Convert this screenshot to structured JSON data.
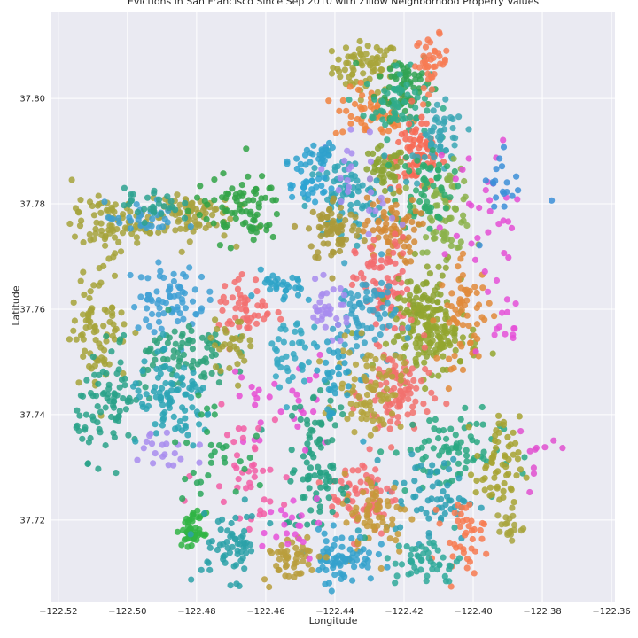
{
  "chart_data": {
    "type": "scatter",
    "title": "Evictions in San Francisco Since Sep 2010 with Zillow Neighborhood Property Values",
    "xlabel": "Longitude",
    "ylabel": "Latitude",
    "xlim": [
      -122.522,
      -122.359
    ],
    "ylim": [
      37.7045,
      37.8165
    ],
    "x_ticks": [
      -122.52,
      -122.5,
      -122.48,
      -122.46,
      -122.44,
      -122.42,
      -122.4,
      -122.38,
      -122.36
    ],
    "x_tick_labels": [
      "−122.52",
      "−122.50",
      "−122.48",
      "−122.46",
      "−122.44",
      "−122.42",
      "−122.40",
      "−122.38",
      "−122.36"
    ],
    "y_ticks": [
      37.72,
      37.74,
      37.76,
      37.78,
      37.8
    ],
    "y_tick_labels": [
      "37.72",
      "37.74",
      "37.76",
      "37.78",
      "37.80"
    ],
    "grid": true,
    "legend": "none",
    "point_alpha": 0.85,
    "background": "#eaeaf2",
    "clusters": [
      {
        "color": "#a8a53a",
        "center": [
          -122.431,
          37.806
        ],
        "spread": [
          0.006,
          0.003
        ],
        "n": 70
      },
      {
        "color": "#f0823e",
        "center": [
          -122.429,
          37.797
        ],
        "spread": [
          0.007,
          0.003
        ],
        "n": 60
      },
      {
        "color": "#31a354",
        "center": [
          -122.42,
          37.803
        ],
        "spread": [
          0.005,
          0.004
        ],
        "n": 60
      },
      {
        "color": "#2fab8b",
        "center": [
          -122.422,
          37.799
        ],
        "spread": [
          0.006,
          0.004
        ],
        "n": 60
      },
      {
        "color": "#f77b54",
        "center": [
          -122.412,
          37.807
        ],
        "spread": [
          0.003,
          0.003
        ],
        "n": 40
      },
      {
        "color": "#f76a55",
        "center": [
          -122.416,
          37.789
        ],
        "spread": [
          0.005,
          0.004
        ],
        "n": 80
      },
      {
        "color": "#8ca332",
        "center": [
          -122.426,
          37.786
        ],
        "spread": [
          0.004,
          0.003
        ],
        "n": 45
      },
      {
        "color": "#3ba7b5",
        "center": [
          -122.409,
          37.792
        ],
        "spread": [
          0.004,
          0.004
        ],
        "n": 50
      },
      {
        "color": "#8bb24a",
        "center": [
          -122.408,
          37.779
        ],
        "spread": [
          0.005,
          0.005
        ],
        "n": 70
      },
      {
        "color": "#30a5b5",
        "center": [
          -122.437,
          37.781
        ],
        "spread": [
          0.007,
          0.005
        ],
        "n": 80
      },
      {
        "color": "#aa9a3a",
        "center": [
          -122.44,
          37.775
        ],
        "spread": [
          0.005,
          0.004
        ],
        "n": 70
      },
      {
        "color": "#2fab6e",
        "center": [
          -122.414,
          37.783
        ],
        "spread": [
          0.005,
          0.005
        ],
        "n": 60
      },
      {
        "color": "#d38a35",
        "center": [
          -122.424,
          37.775
        ],
        "spread": [
          0.005,
          0.004
        ],
        "n": 70
      },
      {
        "color": "#f36b6e",
        "center": [
          -122.426,
          37.764
        ],
        "spread": [
          0.005,
          0.006
        ],
        "n": 80
      },
      {
        "color": "#8da331",
        "center": [
          -122.414,
          37.76
        ],
        "spread": [
          0.005,
          0.006
        ],
        "n": 90
      },
      {
        "color": "#93a62f",
        "center": [
          -122.411,
          37.755
        ],
        "spread": [
          0.008,
          0.004
        ],
        "n": 110
      },
      {
        "color": "#e08a3a",
        "center": [
          -122.402,
          37.759
        ],
        "spread": [
          0.005,
          0.006
        ],
        "n": 60
      },
      {
        "color": "#3ba3c5",
        "center": [
          -122.432,
          37.758
        ],
        "spread": [
          0.006,
          0.006
        ],
        "n": 80
      },
      {
        "color": "#a88cef",
        "center": [
          -122.442,
          37.76
        ],
        "spread": [
          0.004,
          0.003
        ],
        "n": 35
      },
      {
        "color": "#f2716d",
        "center": [
          -122.422,
          37.744
        ],
        "spread": [
          0.006,
          0.006
        ],
        "n": 100
      },
      {
        "color": "#b4a33c",
        "center": [
          -122.43,
          37.745
        ],
        "spread": [
          0.006,
          0.005
        ],
        "n": 80
      },
      {
        "color": "#2aa882",
        "center": [
          -122.408,
          37.733
        ],
        "spread": [
          0.01,
          0.005
        ],
        "n": 80
      },
      {
        "color": "#a7a332",
        "center": [
          -122.393,
          37.73
        ],
        "spread": [
          0.004,
          0.006
        ],
        "n": 60
      },
      {
        "color": "#2ea0b5",
        "center": [
          -122.412,
          37.724
        ],
        "spread": [
          0.008,
          0.005
        ],
        "n": 60
      },
      {
        "color": "#f56f73",
        "center": [
          -122.432,
          37.725
        ],
        "spread": [
          0.006,
          0.005
        ],
        "n": 70
      },
      {
        "color": "#c59a3a",
        "center": [
          -122.428,
          37.721
        ],
        "spread": [
          0.006,
          0.005
        ],
        "n": 60
      },
      {
        "color": "#24a184",
        "center": [
          -122.445,
          37.727
        ],
        "spread": [
          0.006,
          0.006
        ],
        "n": 60
      },
      {
        "color": "#34a1cc",
        "center": [
          -122.438,
          37.713
        ],
        "spread": [
          0.006,
          0.003
        ],
        "n": 70
      },
      {
        "color": "#b89d3c",
        "center": [
          -122.453,
          37.713
        ],
        "spread": [
          0.005,
          0.003
        ],
        "n": 50
      },
      {
        "color": "#f77a50",
        "center": [
          -122.403,
          37.717
        ],
        "spread": [
          0.004,
          0.004
        ],
        "n": 40
      },
      {
        "color": "#2fa99a",
        "center": [
          -122.413,
          37.712
        ],
        "spread": [
          0.006,
          0.003
        ],
        "n": 50
      },
      {
        "color": "#a8a53e",
        "center": [
          -122.39,
          37.719
        ],
        "spread": [
          0.003,
          0.002
        ],
        "n": 20
      },
      {
        "color": "#a6a33c",
        "center": [
          -122.505,
          37.776
        ],
        "spread": [
          0.007,
          0.003
        ],
        "n": 80
      },
      {
        "color": "#a9a23e",
        "center": [
          -122.483,
          37.778
        ],
        "spread": [
          0.008,
          0.003
        ],
        "n": 80
      },
      {
        "color": "#31a346",
        "center": [
          -122.468,
          37.779
        ],
        "spread": [
          0.008,
          0.004
        ],
        "n": 80
      },
      {
        "color": "#3e9fcf",
        "center": [
          -122.495,
          37.777
        ],
        "spread": [
          0.007,
          0.002
        ],
        "n": 30
      },
      {
        "color": "#2ea290",
        "center": [
          -122.493,
          37.78
        ],
        "spread": [
          0.005,
          0.002
        ],
        "n": 30
      },
      {
        "color": "#2ea3d2",
        "center": [
          -122.448,
          37.784
        ],
        "spread": [
          0.004,
          0.003
        ],
        "n": 30
      },
      {
        "color": "#a6a33a",
        "center": [
          -122.508,
          37.757
        ],
        "spread": [
          0.005,
          0.007
        ],
        "n": 80
      },
      {
        "color": "#3fa0d5",
        "center": [
          -122.488,
          37.762
        ],
        "spread": [
          0.007,
          0.004
        ],
        "n": 70
      },
      {
        "color": "#2ea27a",
        "center": [
          -122.485,
          37.752
        ],
        "spread": [
          0.009,
          0.004
        ],
        "n": 80
      },
      {
        "color": "#f36e6e",
        "center": [
          -122.466,
          37.76
        ],
        "spread": [
          0.005,
          0.004
        ],
        "n": 50
      },
      {
        "color": "#a5a23a",
        "center": [
          -122.47,
          37.753
        ],
        "spread": [
          0.004,
          0.003
        ],
        "n": 30
      },
      {
        "color": "#2ea3c8",
        "center": [
          -122.455,
          37.764
        ],
        "spread": [
          0.004,
          0.002
        ],
        "n": 30
      },
      {
        "color": "#2aa28a",
        "center": [
          -122.505,
          37.742
        ],
        "spread": [
          0.006,
          0.006
        ],
        "n": 80
      },
      {
        "color": "#2ba5b5",
        "center": [
          -122.487,
          37.742
        ],
        "spread": [
          0.008,
          0.005
        ],
        "n": 90
      },
      {
        "color": "#a88cef",
        "center": [
          -122.49,
          37.733
        ],
        "spread": [
          0.006,
          0.004
        ],
        "n": 20
      },
      {
        "color": "#e64ed4",
        "center": [
          -122.455,
          37.742
        ],
        "spread": [
          0.01,
          0.006
        ],
        "n": 30
      },
      {
        "color": "#f25ea6",
        "center": [
          -122.466,
          37.73
        ],
        "spread": [
          0.008,
          0.007
        ],
        "n": 40
      },
      {
        "color": "#e651d9",
        "center": [
          -122.452,
          37.72
        ],
        "spread": [
          0.008,
          0.004
        ],
        "n": 20
      },
      {
        "color": "#2ca75c",
        "center": [
          -122.477,
          37.7335
        ],
        "spread": [
          0.006,
          0.005
        ],
        "n": 30
      },
      {
        "color": "#30b444",
        "center": [
          -122.481,
          37.718
        ],
        "spread": [
          0.002,
          0.002
        ],
        "n": 50
      },
      {
        "color": "#2ba1a8",
        "center": [
          -122.47,
          37.715
        ],
        "spread": [
          0.006,
          0.004
        ],
        "n": 60
      },
      {
        "color": "#35a8c3",
        "center": [
          -122.453,
          37.751
        ],
        "spread": [
          0.005,
          0.005
        ],
        "n": 40
      },
      {
        "color": "#2ba281",
        "center": [
          -122.445,
          37.738
        ],
        "spread": [
          0.004,
          0.005
        ],
        "n": 30
      },
      {
        "color": "#2ea2c5",
        "center": [
          -122.44,
          37.747
        ],
        "spread": [
          0.004,
          0.005
        ],
        "n": 30
      },
      {
        "color": "#e44fd5",
        "center": [
          -122.398,
          37.777
        ],
        "spread": [
          0.008,
          0.008
        ],
        "n": 30
      },
      {
        "color": "#3c8fd8",
        "center": [
          -122.391,
          37.785
        ],
        "spread": [
          0.004,
          0.006
        ],
        "n": 20
      },
      {
        "color": "#a88cef",
        "center": [
          -122.432,
          37.783
        ],
        "spread": [
          0.006,
          0.006
        ],
        "n": 25
      },
      {
        "color": "#2fa1cc",
        "center": [
          -122.445,
          37.7895
        ],
        "spread": [
          0.004,
          0.002
        ],
        "n": 25
      },
      {
        "color": "#e551d8",
        "center": [
          -122.393,
          37.757
        ],
        "spread": [
          0.005,
          0.008
        ],
        "n": 15
      },
      {
        "color": "#e050d0",
        "center": [
          -122.382,
          37.732
        ],
        "spread": [
          0.005,
          0.003
        ],
        "n": 10
      }
    ]
  }
}
